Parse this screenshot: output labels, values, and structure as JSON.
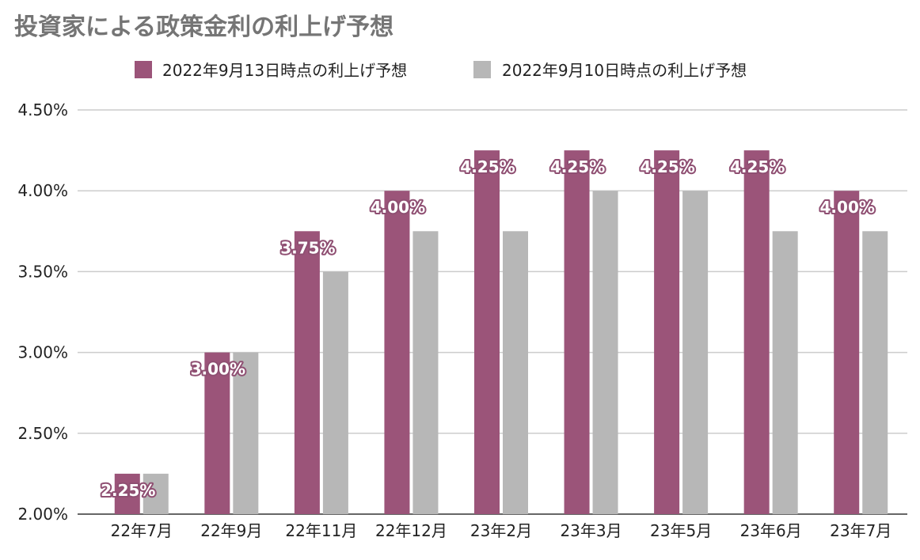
{
  "chart_data": {
    "type": "bar",
    "title": "投資家による政策金利の利上げ予想",
    "categories": [
      "22年7月",
      "22年9月",
      "22年11月",
      "22年12月",
      "23年2月",
      "23年3月",
      "23年5月",
      "23年6月",
      "23年7月"
    ],
    "series": [
      {
        "name": "2022年9月13日時点の利上げ予想",
        "color": "#9b5479",
        "values": [
          2.25,
          3.0,
          3.75,
          4.0,
          4.25,
          4.25,
          4.25,
          4.25,
          4.0
        ],
        "data_labels": [
          "2.25%",
          "3.00%",
          "3.75%",
          "4.00%",
          "4.25%",
          "4.25%",
          "4.25%",
          "4.25%",
          "4.00%"
        ]
      },
      {
        "name": "2022年9月10日時点の利上げ予想",
        "color": "#b7b7b7",
        "values": [
          2.25,
          3.0,
          3.5,
          3.75,
          3.75,
          4.0,
          4.0,
          3.75,
          3.75
        ]
      }
    ],
    "y_ticks": [
      {
        "value": 2.0,
        "label": "2.00%"
      },
      {
        "value": 2.5,
        "label": "2.50%"
      },
      {
        "value": 3.0,
        "label": "3.00%"
      },
      {
        "value": 3.5,
        "label": "3.50%"
      },
      {
        "value": 4.0,
        "label": "4.00%"
      },
      {
        "value": 4.5,
        "label": "4.50%"
      }
    ],
    "ylim": [
      2.0,
      4.5
    ],
    "grid": true,
    "legend_position": "top"
  }
}
